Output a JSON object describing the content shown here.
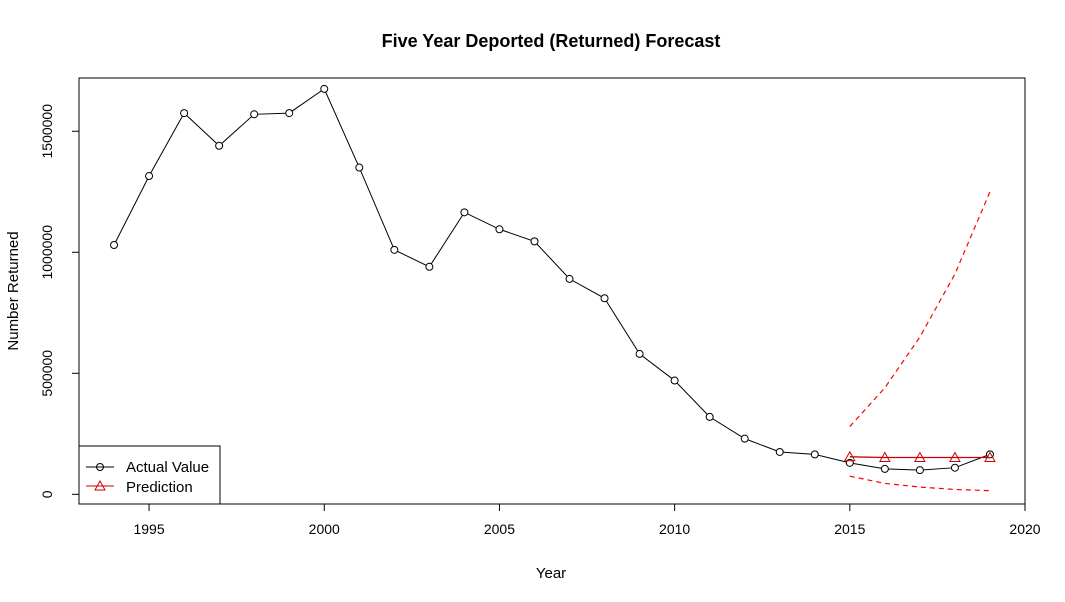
{
  "chart_data": {
    "type": "line",
    "title": "Five Year Deported (Returned) Forecast",
    "xlabel": "Year",
    "ylabel": "Number Returned",
    "xlim": [
      1993,
      2020
    ],
    "ylim": [
      -40000,
      1720000
    ],
    "x_ticks": [
      1995,
      2000,
      2005,
      2010,
      2015,
      2020
    ],
    "y_ticks": [
      0,
      500000,
      1000000,
      1500000
    ],
    "grid": false,
    "legend": {
      "position": "bottom-left",
      "entries": [
        "Actual Value",
        "Prediction"
      ]
    },
    "colors": {
      "actual": "#000000",
      "prediction": "#cc0000",
      "interval": "#ff0000"
    },
    "series": [
      {
        "name": "Actual Value",
        "marker": "circle",
        "x": [
          1994,
          1995,
          1996,
          1997,
          1998,
          1999,
          2000,
          2001,
          2002,
          2003,
          2004,
          2005,
          2006,
          2007,
          2008,
          2009,
          2010,
          2011,
          2012,
          2013,
          2014,
          2015,
          2016,
          2017,
          2018,
          2019
        ],
        "values": [
          1030000,
          1315000,
          1575000,
          1440000,
          1570000,
          1575000,
          1675000,
          1350000,
          1010000,
          940000,
          1165000,
          1095000,
          1045000,
          890000,
          810000,
          580000,
          470000,
          320000,
          230000,
          175000,
          165000,
          130000,
          105000,
          100000,
          110000,
          165000
        ]
      },
      {
        "name": "Prediction",
        "marker": "triangle",
        "x": [
          2015,
          2016,
          2017,
          2018,
          2019
        ],
        "values": [
          155000,
          152000,
          152000,
          152000,
          152000
        ]
      }
    ],
    "interval": {
      "x": [
        2015,
        2016,
        2017,
        2018,
        2019
      ],
      "upper": [
        280000,
        440000,
        650000,
        910000,
        1250000
      ],
      "lower": [
        75000,
        45000,
        30000,
        20000,
        15000
      ]
    }
  }
}
